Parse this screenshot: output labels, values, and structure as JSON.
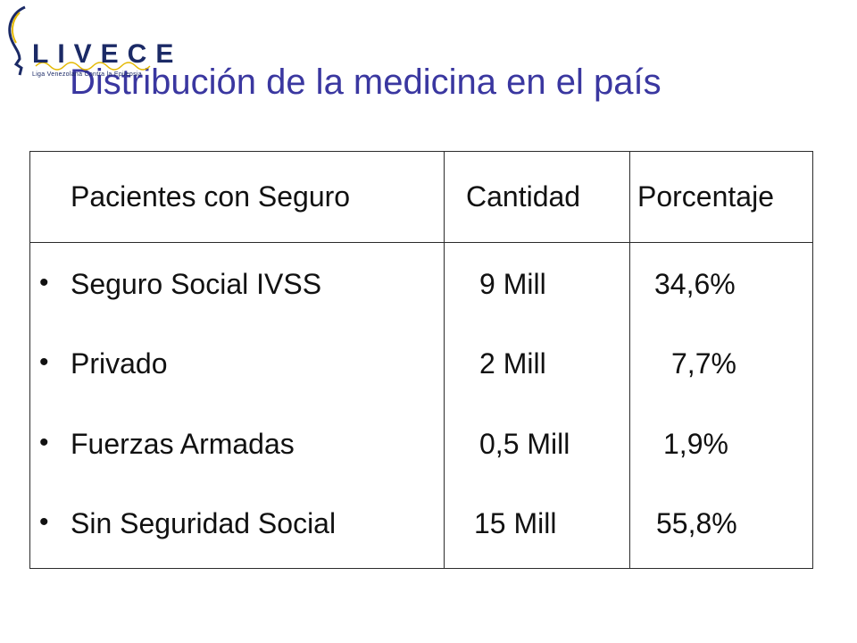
{
  "logo": {
    "letters": "LIVECE",
    "tagline": "Liga Venezolana Contra la Epilepsia"
  },
  "title": "Distribución de la medicina en el país",
  "table": {
    "headers": [
      "Pacientes con Seguro",
      "Cantidad",
      "Porcentaje"
    ],
    "rows": [
      {
        "name": "Seguro Social IVSS",
        "cantidad": "9 Mill",
        "porcentaje": "34,6%"
      },
      {
        "name": "Privado",
        "cantidad": "2 Mill",
        "porcentaje": "7,7%"
      },
      {
        "name": "Fuerzas Armadas",
        "cantidad": "0,5 Mill",
        "porcentaje": "1,9%"
      },
      {
        "name": "Sin Seguridad Social",
        "cantidad": "15 Mill",
        "porcentaje": "55,8%"
      }
    ]
  },
  "colors": {
    "title": "#3a37a0",
    "logo": "#1b2a66",
    "logo_accent": "#e3b800"
  }
}
